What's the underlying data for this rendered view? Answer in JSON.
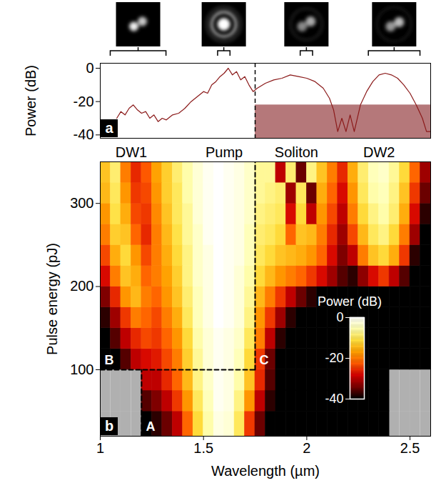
{
  "chart_data": [
    {
      "type": "line",
      "panel_label": "a",
      "y_label": "Power (dB)",
      "color": "#8b1a1a",
      "xlim": [
        1,
        2.6
      ],
      "ylim": [
        -42,
        3
      ],
      "yticks": [
        0,
        -20,
        -40
      ],
      "tick_labels": "y",
      "x": [
        1.08,
        1.1,
        1.12,
        1.14,
        1.16,
        1.18,
        1.2,
        1.22,
        1.24,
        1.26,
        1.28,
        1.3,
        1.32,
        1.35,
        1.38,
        1.41,
        1.44,
        1.47,
        1.5,
        1.52,
        1.54,
        1.56,
        1.58,
        1.6,
        1.62,
        1.64,
        1.66,
        1.68,
        1.7,
        1.72,
        1.74,
        1.76,
        1.8,
        1.84,
        1.88,
        1.92,
        1.96,
        2.0,
        2.04,
        2.08,
        2.11,
        2.13,
        2.15,
        2.17,
        2.19,
        2.21,
        2.23,
        2.26,
        2.29,
        2.32,
        2.35,
        2.38,
        2.41,
        2.44,
        2.47,
        2.5,
        2.53,
        2.56,
        2.58,
        2.6
      ],
      "values": [
        -30,
        -26,
        -28,
        -24,
        -22,
        -25,
        -27,
        -26,
        -30,
        -28,
        -32,
        -30,
        -31,
        -28,
        -27,
        -24,
        -20,
        -17,
        -14,
        -15,
        -10,
        -8,
        -5,
        -3,
        0,
        -4,
        -2,
        -7,
        -5,
        -10,
        -14,
        -12,
        -9,
        -7,
        -6,
        -4,
        -5,
        -6,
        -8,
        -12,
        -18,
        -25,
        -38,
        -30,
        -38,
        -28,
        -38,
        -22,
        -14,
        -8,
        -4,
        -3,
        -4,
        -6,
        -10,
        -15,
        -22,
        -30,
        -38,
        -38
      ],
      "shaded_region": {
        "x": [
          1.75,
          2.6
        ],
        "y": [
          -42,
          -22
        ]
      },
      "dashed_line_x": 1.75,
      "mode_ranges": [
        [
          1.05,
          1.32
        ],
        [
          1.57,
          1.63
        ],
        [
          1.97,
          2.03
        ],
        [
          2.3,
          2.55
        ]
      ]
    },
    {
      "type": "heatmap",
      "panel_label": "b",
      "x_label": "Wavelength (µm)",
      "y_label": "Pulse energy (pJ)",
      "xlim": [
        1,
        2.6
      ],
      "ylim": [
        20,
        350
      ],
      "xticks": [
        1,
        1.5,
        2,
        2.5
      ],
      "yticks": [
        100,
        200,
        300
      ],
      "x_bins": [
        1.0,
        1.05,
        1.1,
        1.15,
        1.2,
        1.25,
        1.3,
        1.35,
        1.4,
        1.45,
        1.5,
        1.55,
        1.6,
        1.65,
        1.7,
        1.75,
        1.8,
        1.85,
        1.9,
        1.95,
        2.0,
        2.05,
        2.1,
        2.15,
        2.2,
        2.25,
        2.3,
        2.35,
        2.4,
        2.45,
        2.5,
        2.55,
        2.6
      ],
      "y_bins": [
        20,
        50,
        75,
        100,
        125,
        150,
        175,
        200,
        225,
        250,
        275,
        300,
        325,
        350
      ],
      "cells": [
        [
          null,
          null,
          null,
          null,
          -40,
          -38,
          -35,
          -30,
          -22,
          -12,
          -6,
          -2,
          -3,
          -10,
          -25,
          -35,
          -40,
          -40,
          -40,
          -40,
          -40,
          -40,
          -40,
          -40,
          -40,
          -40,
          -40,
          -40,
          null,
          null,
          null,
          null
        ],
        [
          null,
          null,
          null,
          null,
          -36,
          -34,
          -30,
          -25,
          -18,
          -10,
          -5,
          -1,
          -2,
          -8,
          -18,
          -30,
          -38,
          -40,
          -40,
          -40,
          -40,
          -40,
          -40,
          -40,
          -40,
          -40,
          -40,
          -40,
          null,
          null,
          null,
          null
        ],
        [
          null,
          null,
          null,
          null,
          -30,
          -30,
          -26,
          -22,
          -15,
          -8,
          -4,
          -1,
          -2,
          -6,
          -14,
          -26,
          -36,
          -40,
          -40,
          -40,
          -40,
          -40,
          -40,
          -40,
          -40,
          -40,
          -40,
          -40,
          null,
          null,
          null,
          null
        ],
        [
          -40,
          -40,
          -36,
          -30,
          -28,
          -27,
          -24,
          -20,
          -13,
          -7,
          -3,
          -1,
          -2,
          -5,
          -12,
          -25,
          -35,
          -40,
          -40,
          -40,
          -40,
          -40,
          -40,
          -40,
          -40,
          -40,
          -40,
          -40,
          -40,
          -40,
          -40,
          -40
        ],
        [
          -40,
          -36,
          -30,
          -26,
          -24,
          -25,
          -22,
          -18,
          -12,
          -6,
          -3,
          -1,
          -2,
          -4,
          -10,
          -20,
          -30,
          -38,
          -40,
          -40,
          -40,
          -40,
          -40,
          -40,
          -40,
          -40,
          -40,
          -40,
          -40,
          -40,
          -40,
          -40
        ],
        [
          -38,
          -32,
          -25,
          -20,
          -22,
          -24,
          -20,
          -16,
          -10,
          -5,
          -2,
          0,
          -1,
          -3,
          -8,
          -18,
          -25,
          -32,
          -38,
          -40,
          -40,
          -40,
          -40,
          -40,
          -40,
          -40,
          -40,
          -40,
          -40,
          -40,
          -40,
          -40
        ],
        [
          -34,
          -26,
          -18,
          -15,
          -20,
          -22,
          -18,
          -14,
          -9,
          -5,
          -2,
          0,
          -1,
          -3,
          -7,
          -15,
          -20,
          -25,
          -30,
          -35,
          -38,
          -40,
          -40,
          -40,
          -40,
          -40,
          -40,
          -40,
          -40,
          -40,
          -40,
          -40
        ],
        [
          -28,
          -20,
          -14,
          -16,
          -22,
          -20,
          -17,
          -13,
          -8,
          -4,
          -2,
          0,
          -1,
          -3,
          -6,
          -12,
          -15,
          -18,
          -20,
          -22,
          -25,
          -28,
          -32,
          -36,
          -38,
          -33,
          -28,
          -25,
          -30,
          -36,
          -40,
          -40
        ],
        [
          -24,
          -16,
          -12,
          -18,
          -24,
          -20,
          -16,
          -12,
          -8,
          -4,
          -2,
          0,
          -1,
          -2,
          -5,
          -10,
          -12,
          -14,
          -15,
          -16,
          -18,
          -22,
          -28,
          -34,
          -30,
          -20,
          -14,
          -12,
          -16,
          -25,
          -38,
          -40
        ],
        [
          -20,
          -13,
          -14,
          -22,
          -26,
          -20,
          -15,
          -11,
          -7,
          -4,
          -1,
          0,
          -1,
          -2,
          -5,
          -9,
          -10,
          -12,
          -22,
          -14,
          -15,
          -20,
          -26,
          -32,
          -24,
          -15,
          -10,
          -8,
          -12,
          -20,
          -32,
          -40
        ],
        [
          -18,
          -11,
          -16,
          -24,
          -25,
          -19,
          -14,
          -10,
          -7,
          -3,
          -1,
          0,
          -1,
          -2,
          -4,
          -8,
          -9,
          -10,
          -28,
          -12,
          -30,
          -18,
          -24,
          -30,
          -20,
          -12,
          -8,
          -6,
          -9,
          -16,
          -28,
          -38
        ],
        [
          -15,
          -10,
          -18,
          -25,
          -24,
          -18,
          -13,
          -10,
          -6,
          -3,
          -1,
          0,
          -1,
          -2,
          -4,
          -7,
          -8,
          -9,
          -32,
          -10,
          -35,
          -16,
          -22,
          -28,
          -18,
          -10,
          -6,
          -5,
          -8,
          -14,
          -25,
          -35
        ],
        [
          -14,
          -9,
          -20,
          -26,
          -23,
          -17,
          -13,
          -9,
          -6,
          -3,
          -1,
          0,
          -1,
          -2,
          -4,
          -7,
          -7,
          -30,
          -9,
          -35,
          -8,
          -14,
          -20,
          -26,
          -16,
          -9,
          -5,
          -4,
          -7,
          -12,
          -22,
          -32
        ]
      ],
      "colorbar": {
        "label": "Power (dB)",
        "lim": [
          -40,
          0
        ],
        "ticks": [
          0,
          -20,
          -40
        ]
      },
      "region_labels": [
        {
          "label": "DW1",
          "x": 1.15
        },
        {
          "label": "Pump",
          "x": 1.6
        },
        {
          "label": "Soliton",
          "x": 1.95
        },
        {
          "label": "DW2",
          "x": 2.35
        }
      ],
      "points": [
        {
          "label": "A",
          "x": 1.2,
          "y": 20
        },
        {
          "label": "B",
          "x": 1.0,
          "y": 100
        },
        {
          "label": "C",
          "x": 1.75,
          "y": 100
        }
      ]
    }
  ]
}
